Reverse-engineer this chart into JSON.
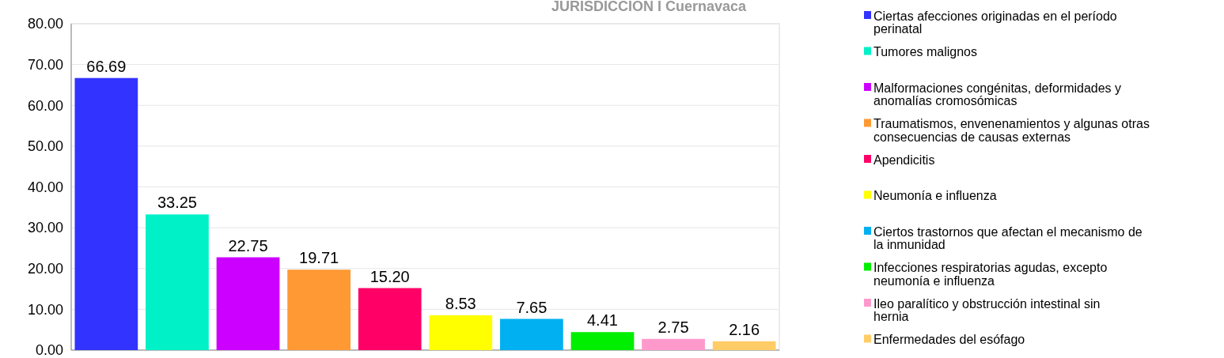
{
  "chart_data": {
    "type": "bar",
    "title": "JURISDICCION I Cuernavaca",
    "categories": [
      null
    ],
    "series": [
      {
        "name": "Ciertas afecciones originadas en el período perinatal",
        "color": "#3333ff",
        "values": [
          66.69
        ],
        "value_labels": [
          "66.69"
        ]
      },
      {
        "name": "Tumores malignos",
        "color": "#00f0c8",
        "values": [
          33.25
        ],
        "value_labels": [
          "33.25"
        ]
      },
      {
        "name": "Malformaciones congénitas, deformidades y anomalías cromosómicas",
        "color": "#cc00ff",
        "values": [
          22.75
        ],
        "value_labels": [
          "22.75"
        ]
      },
      {
        "name": "Traumatismos, envenenamientos y algunas otras consecuencias de causas externas",
        "color": "#ff9933",
        "values": [
          19.71
        ],
        "value_labels": [
          "19.71"
        ]
      },
      {
        "name": "Apendicitis",
        "color": "#ff0066",
        "values": [
          15.2
        ],
        "value_labels": [
          "15.20"
        ]
      },
      {
        "name": "Neumonía e influenza",
        "color": "#ffff00",
        "values": [
          8.53
        ],
        "value_labels": [
          "8.53"
        ]
      },
      {
        "name": "Ciertos trastornos que afectan el mecanismo de la inmunidad",
        "color": "#00b0f0",
        "values": [
          7.65
        ],
        "value_labels": [
          "7.65"
        ]
      },
      {
        "name": "Infecciones respiratorias agudas, excepto neumonía e influenza",
        "color": "#00ee00",
        "values": [
          4.41
        ],
        "value_labels": [
          "4.41"
        ]
      },
      {
        "name": "Ileo paralítico y obstrucción intestinal sin hernia",
        "color": "#ff99cc",
        "values": [
          2.75
        ],
        "value_labels": [
          "2.75"
        ]
      },
      {
        "name": "Enfermedades del esófago",
        "color": "#ffcc66",
        "values": [
          2.16
        ],
        "value_labels": [
          "2.16"
        ]
      }
    ],
    "ylim": [
      0,
      80
    ],
    "yticks": [
      {
        "value": 0,
        "label": "0.00"
      },
      {
        "value": 10,
        "label": "10.00"
      },
      {
        "value": 20,
        "label": "20.00"
      },
      {
        "value": 30,
        "label": "30.00"
      },
      {
        "value": 40,
        "label": "40.00"
      },
      {
        "value": 50,
        "label": "50.00"
      },
      {
        "value": 60,
        "label": "60.00"
      },
      {
        "value": 70,
        "label": "70.00"
      },
      {
        "value": 80,
        "label": "80.00"
      }
    ],
    "grid": "y",
    "legend": "right"
  }
}
